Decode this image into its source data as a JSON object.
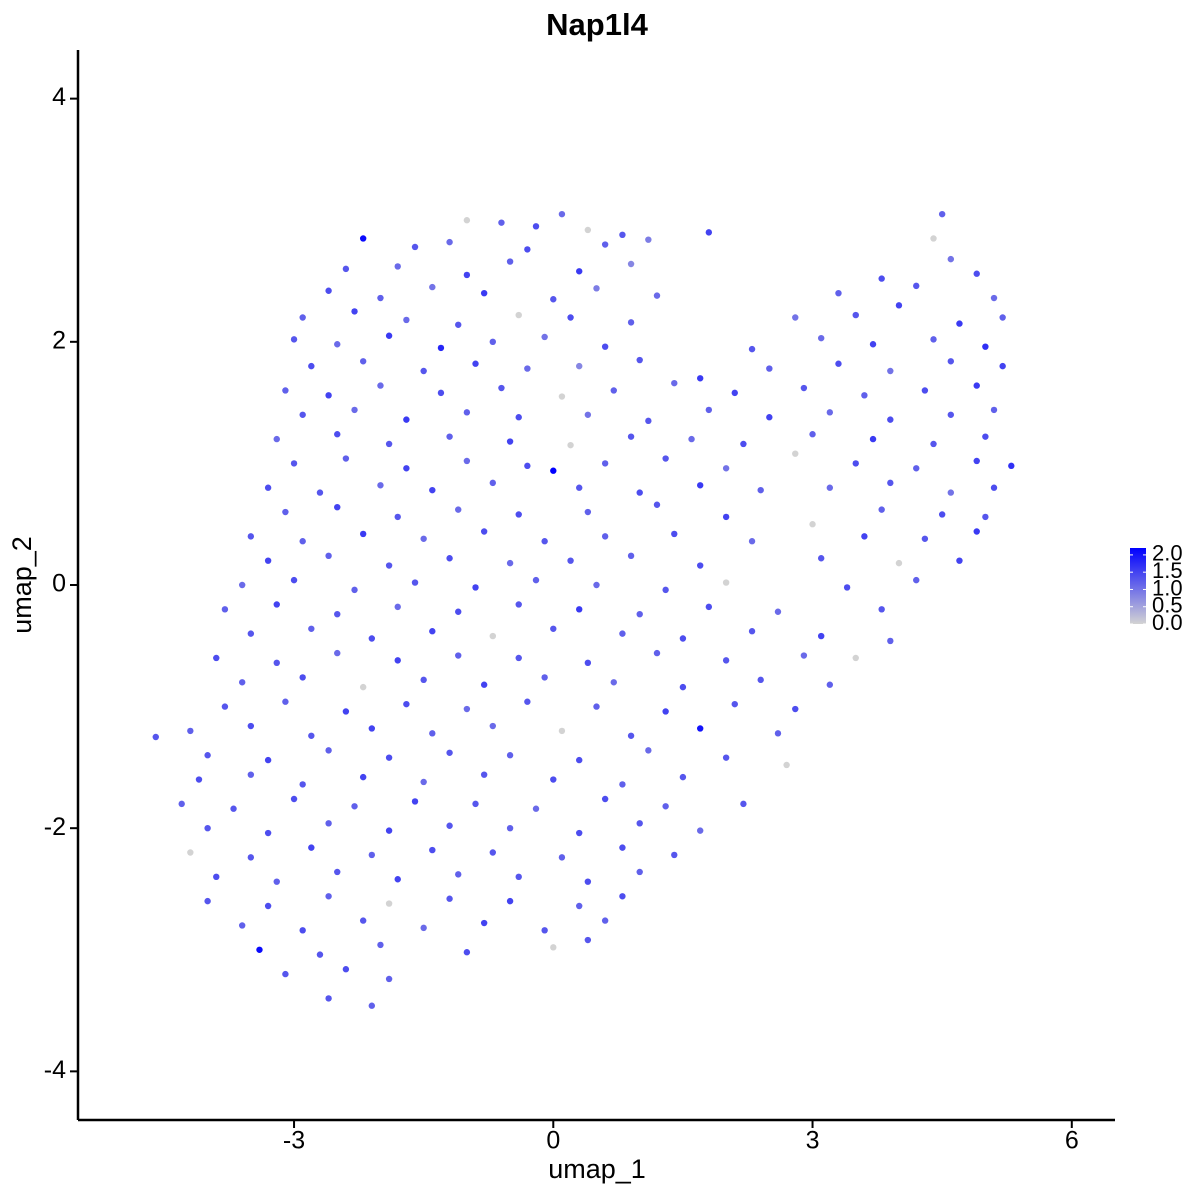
{
  "chart_data": {
    "type": "scatter",
    "title": "Nap1l4",
    "x_label": "umap_1",
    "y_label": "umap_2",
    "xlim": [
      -5.5,
      6.5
    ],
    "ylim": [
      -4.4,
      4.4
    ],
    "xticks": [
      -3,
      0,
      3,
      6
    ],
    "yticks": [
      -4,
      -2,
      0,
      2,
      4
    ],
    "low_color": "#d3d3d3",
    "high_color": "#0000ff",
    "colorbar_ticks": [
      {
        "value": 0,
        "label": "0.0"
      },
      {
        "value": 0.5,
        "label": "0.5"
      },
      {
        "value": 1,
        "label": "1.0"
      },
      {
        "value": 1.5,
        "label": "1.5"
      },
      {
        "value": 2,
        "label": "2.0"
      }
    ],
    "x": [
      -1.0,
      -0.6,
      -0.2,
      0.1,
      0.4,
      0.8,
      -2.2,
      -1.6,
      -1.2,
      -0.3,
      0.6,
      1.1,
      1.8,
      4.5,
      4.4,
      -2.4,
      -1.8,
      -1.0,
      -0.5,
      0.3,
      0.9,
      4.6,
      4.9,
      -2.6,
      -2.0,
      -1.4,
      -0.8,
      0.0,
      0.5,
      1.2,
      3.3,
      3.8,
      4.2,
      5.1,
      -2.9,
      -2.3,
      -1.7,
      -1.1,
      -0.4,
      0.2,
      0.9,
      2.8,
      3.5,
      4.0,
      4.7,
      5.2,
      -3.0,
      -2.5,
      -1.9,
      -1.3,
      -0.7,
      -0.1,
      0.6,
      2.3,
      3.1,
      3.7,
      4.4,
      5.0,
      -2.8,
      -2.2,
      -1.5,
      -0.9,
      -0.3,
      0.3,
      1.0,
      1.7,
      2.5,
      3.3,
      3.9,
      4.6,
      5.2,
      -3.1,
      -2.6,
      -2.0,
      -1.3,
      -0.6,
      0.1,
      0.7,
      1.4,
      2.1,
      2.9,
      3.6,
      4.3,
      4.9,
      -2.9,
      -2.3,
      -1.7,
      -1.0,
      -0.4,
      0.4,
      1.1,
      1.8,
      2.5,
      3.2,
      3.9,
      4.6,
      5.1,
      -3.2,
      -2.5,
      -1.9,
      -1.2,
      -0.5,
      0.2,
      0.9,
      1.6,
      2.2,
      3.0,
      3.7,
      4.4,
      5.0,
      -3.0,
      -2.4,
      -1.7,
      -1.0,
      -0.3,
      0.0,
      0.6,
      1.3,
      2.0,
      2.8,
      3.5,
      4.2,
      4.9,
      5.3,
      -3.3,
      -2.7,
      -2.0,
      -1.4,
      -0.7,
      0.3,
      1.0,
      1.7,
      2.4,
      3.2,
      3.9,
      4.6,
      5.1,
      -3.1,
      -2.5,
      -1.8,
      -1.1,
      -0.4,
      0.4,
      1.2,
      2.0,
      3.0,
      3.8,
      4.5,
      5.0,
      -3.5,
      -2.9,
      -2.2,
      -1.5,
      -0.8,
      -0.1,
      0.6,
      1.4,
      2.3,
      3.6,
      4.3,
      4.9,
      -3.3,
      -2.6,
      -1.9,
      -1.2,
      -0.5,
      0.2,
      0.9,
      1.7,
      3.1,
      4.0,
      4.7,
      -3.6,
      -3.0,
      -2.3,
      -1.6,
      -0.9,
      -0.2,
      0.5,
      1.3,
      2.0,
      3.4,
      4.2,
      -3.8,
      -3.2,
      -2.5,
      -1.8,
      -1.1,
      -0.4,
      0.3,
      1.0,
      1.8,
      2.6,
      3.8,
      -3.5,
      -2.8,
      -2.1,
      -1.4,
      -0.7,
      0.0,
      0.8,
      1.5,
      2.3,
      3.1,
      3.9,
      -3.9,
      -3.2,
      -2.5,
      -1.8,
      -1.1,
      -0.4,
      0.4,
      1.2,
      2.0,
      2.9,
      3.5,
      -3.6,
      -2.9,
      -2.2,
      -1.5,
      -0.8,
      -0.1,
      0.7,
      1.5,
      2.4,
      3.2,
      -3.8,
      -3.1,
      -2.4,
      -1.7,
      -1.0,
      -0.3,
      0.5,
      1.3,
      2.1,
      2.8,
      -4.2,
      -3.5,
      -2.8,
      -2.1,
      -1.4,
      -0.7,
      0.1,
      0.9,
      1.7,
      2.6,
      -4.6,
      -4.0,
      -3.3,
      -2.6,
      -1.9,
      -1.2,
      -0.5,
      0.3,
      1.1,
      2.0,
      2.7,
      -4.1,
      -3.5,
      -2.9,
      -2.2,
      -1.5,
      -0.8,
      0.0,
      0.8,
      1.5,
      -4.3,
      -3.7,
      -3.0,
      -2.3,
      -1.6,
      -0.9,
      -0.2,
      0.6,
      1.3,
      2.2,
      -4.0,
      -3.3,
      -2.6,
      -1.9,
      -1.2,
      -0.5,
      0.3,
      1.0,
      1.7,
      -4.2,
      -3.5,
      -2.8,
      -2.1,
      -1.4,
      -0.7,
      0.1,
      0.8,
      1.4,
      -3.9,
      -3.2,
      -2.5,
      -1.8,
      -1.1,
      -0.4,
      0.4,
      1.0,
      -4.0,
      -3.3,
      -2.6,
      -1.9,
      -1.2,
      -0.5,
      0.3,
      0.8,
      -3.6,
      -2.9,
      -2.2,
      -1.5,
      -0.8,
      -0.1,
      0.6,
      -3.4,
      -2.7,
      -2.0,
      -1.0,
      0.0,
      0.4,
      -3.1,
      -2.4,
      -1.9,
      -2.6,
      -2.1
    ],
    "y": [
      3.0,
      2.98,
      2.95,
      3.05,
      2.92,
      2.88,
      2.85,
      2.78,
      2.82,
      2.76,
      2.8,
      2.84,
      2.9,
      3.05,
      2.85,
      2.6,
      2.62,
      2.55,
      2.66,
      2.58,
      2.64,
      2.68,
      2.56,
      2.42,
      2.36,
      2.45,
      2.4,
      2.35,
      2.44,
      2.38,
      2.4,
      2.52,
      2.46,
      2.36,
      2.2,
      2.25,
      2.18,
      2.14,
      2.22,
      2.2,
      2.16,
      2.2,
      2.22,
      2.3,
      2.15,
      2.2,
      2.02,
      1.98,
      2.05,
      1.95,
      2.0,
      2.04,
      1.96,
      1.94,
      2.03,
      1.98,
      2.02,
      1.96,
      1.8,
      1.84,
      1.76,
      1.82,
      1.78,
      1.8,
      1.85,
      1.7,
      1.78,
      1.82,
      1.76,
      1.84,
      1.8,
      1.6,
      1.56,
      1.64,
      1.58,
      1.62,
      1.55,
      1.6,
      1.66,
      1.58,
      1.62,
      1.56,
      1.6,
      1.64,
      1.4,
      1.44,
      1.36,
      1.42,
      1.38,
      1.4,
      1.35,
      1.44,
      1.38,
      1.42,
      1.36,
      1.4,
      1.44,
      1.2,
      1.24,
      1.16,
      1.22,
      1.18,
      1.15,
      1.22,
      1.2,
      1.16,
      1.24,
      1.2,
      1.16,
      1.22,
      1.0,
      1.04,
      0.96,
      1.02,
      0.98,
      0.94,
      1.0,
      1.04,
      0.96,
      1.08,
      1.0,
      0.96,
      1.02,
      0.98,
      0.8,
      0.76,
      0.82,
      0.78,
      0.84,
      0.8,
      0.76,
      0.82,
      0.78,
      0.8,
      0.84,
      0.76,
      0.8,
      0.6,
      0.64,
      0.56,
      0.62,
      0.58,
      0.6,
      0.66,
      0.56,
      0.5,
      0.62,
      0.58,
      0.56,
      0.4,
      0.36,
      0.42,
      0.38,
      0.44,
      0.36,
      0.4,
      0.42,
      0.36,
      0.4,
      0.38,
      0.44,
      0.2,
      0.24,
      0.16,
      0.22,
      0.18,
      0.2,
      0.24,
      0.16,
      0.22,
      0.18,
      0.2,
      0.0,
      0.04,
      -0.04,
      0.02,
      -0.02,
      0.04,
      0.0,
      -0.04,
      0.02,
      -0.02,
      0.04,
      -0.2,
      -0.16,
      -0.24,
      -0.18,
      -0.22,
      -0.16,
      -0.2,
      -0.24,
      -0.18,
      -0.22,
      -0.2,
      -0.4,
      -0.36,
      -0.44,
      -0.38,
      -0.42,
      -0.36,
      -0.4,
      -0.44,
      -0.38,
      -0.42,
      -0.46,
      -0.6,
      -0.64,
      -0.56,
      -0.62,
      -0.58,
      -0.6,
      -0.64,
      -0.56,
      -0.62,
      -0.58,
      -0.6,
      -0.8,
      -0.76,
      -0.84,
      -0.78,
      -0.82,
      -0.76,
      -0.8,
      -0.84,
      -0.78,
      -0.82,
      -1.0,
      -0.96,
      -1.04,
      -0.98,
      -1.02,
      -0.96,
      -1.0,
      -1.04,
      -0.98,
      -1.02,
      -1.2,
      -1.16,
      -1.24,
      -1.18,
      -1.22,
      -1.16,
      -1.2,
      -1.24,
      -1.18,
      -1.22,
      -1.25,
      -1.4,
      -1.44,
      -1.36,
      -1.42,
      -1.38,
      -1.4,
      -1.44,
      -1.36,
      -1.42,
      -1.48,
      -1.6,
      -1.56,
      -1.64,
      -1.58,
      -1.62,
      -1.56,
      -1.6,
      -1.64,
      -1.58,
      -1.8,
      -1.84,
      -1.76,
      -1.82,
      -1.78,
      -1.8,
      -1.84,
      -1.76,
      -1.82,
      -1.8,
      -2.0,
      -2.04,
      -1.96,
      -2.02,
      -1.98,
      -2.0,
      -2.04,
      -1.96,
      -2.02,
      -2.2,
      -2.24,
      -2.16,
      -2.22,
      -2.18,
      -2.2,
      -2.24,
      -2.16,
      -2.22,
      -2.4,
      -2.44,
      -2.36,
      -2.42,
      -2.38,
      -2.4,
      -2.44,
      -2.36,
      -2.6,
      -2.64,
      -2.56,
      -2.62,
      -2.58,
      -2.6,
      -2.64,
      -2.56,
      -2.8,
      -2.84,
      -2.76,
      -2.82,
      -2.78,
      -2.84,
      -2.76,
      -3.0,
      -3.04,
      -2.96,
      -3.02,
      -2.98,
      -2.92,
      -3.2,
      -3.16,
      -3.24,
      -3.4,
      -3.46
    ],
    "values": [
      0,
      1.2,
      1.4,
      1.1,
      0,
      1.3,
      2.1,
      1.3,
      1.1,
      1.4,
      1.2,
      0.9,
      1.5,
      1.2,
      0,
      1.3,
      1.1,
      1.5,
      1.2,
      1.6,
      0.8,
      1.0,
      1.4,
      1.4,
      1.2,
      1.0,
      1.6,
      1.3,
      0.9,
      1.1,
      1.2,
      1.4,
      1.3,
      1.1,
      1.2,
      1.5,
      1.1,
      1.3,
      0,
      1.4,
      1.2,
      1.0,
      1.3,
      1.5,
      1.6,
      1.2,
      1.3,
      1.1,
      1.6,
      1.8,
      1.2,
      1.0,
      1.4,
      1.3,
      1.1,
      1.5,
      1.2,
      1.7,
      1.4,
      1.2,
      1.3,
      1.5,
      1.1,
      0.8,
      1.3,
      1.6,
      1.2,
      1.4,
      1.0,
      1.3,
      1.5,
      1.2,
      1.5,
      1.1,
      1.4,
      1.3,
      0,
      1.2,
      1.1,
      1.5,
      1.3,
      1.2,
      1.4,
      1.6,
      1.3,
      1.1,
      1.6,
      1.2,
      1.4,
      1.0,
      1.3,
      1.2,
      1.5,
      1.1,
      1.4,
      1.3,
      1.2,
      1.1,
      1.4,
      1.3,
      1.2,
      1.5,
      0,
      1.3,
      1.1,
      1.4,
      1.2,
      1.6,
      1.3,
      1.4,
      1.3,
      1.2,
      1.5,
      1.1,
      1.4,
      2.2,
      1.2,
      1.3,
      1.0,
      0,
      1.4,
      1.2,
      1.5,
      1.7,
      1.4,
      1.3,
      1.1,
      1.5,
      1.2,
      1.3,
      1.4,
      1.6,
      1.2,
      1.1,
      1.3,
      1.0,
      1.4,
      1.2,
      1.5,
      1.3,
      1.1,
      1.4,
      1.2,
      1.3,
      1.5,
      0,
      1.2,
      1.4,
      1.3,
      1.3,
      1.2,
      1.6,
      1.1,
      1.4,
      1.3,
      1.2,
      1.4,
      1.1,
      1.5,
      1.3,
      1.6,
      1.5,
      1.2,
      1.3,
      1.4,
      1.1,
      1.3,
      1.2,
      1.4,
      1.3,
      0,
      1.5,
      1.1,
      1.4,
      1.2,
      1.3,
      1.5,
      1.2,
      1.1,
      1.3,
      0,
      1.4,
      1.2,
      1.2,
      1.5,
      1.3,
      1.1,
      1.4,
      1.3,
      1.6,
      1.2,
      1.4,
      1.1,
      1.3,
      1.3,
      1.2,
      1.4,
      1.5,
      0,
      1.3,
      1.2,
      1.4,
      1.3,
      1.5,
      1.2,
      1.4,
      1.3,
      1.1,
      1.5,
      1.2,
      1.3,
      1.4,
      1.2,
      1.3,
      1.1,
      0,
      1.2,
      1.4,
      0,
      1.3,
      1.5,
      1.2,
      1.1,
      1.4,
      1.3,
      1.2,
      1.3,
      1.2,
      1.5,
      1.4,
      1.1,
      1.3,
      1.2,
      1.5,
      1.3,
      1.4,
      1.2,
      1.4,
      1.3,
      1.5,
      1.2,
      1.1,
      0,
      1.3,
      2.0,
      1.2,
      1.3,
      1.3,
      1.5,
      1.2,
      1.4,
      1.3,
      1.2,
      1.4,
      1.1,
      1.3,
      0,
      1.4,
      1.2,
      1.3,
      1.5,
      1.1,
      1.3,
      1.4,
      1.2,
      1.3,
      1.2,
      1.3,
      1.4,
      1.2,
      1.5,
      1.3,
      1.1,
      1.4,
      1.2,
      1.3,
      1.3,
      1.4,
      1.2,
      1.5,
      1.3,
      1.2,
      1.4,
      1.3,
      1.1,
      0,
      1.3,
      1.5,
      1.2,
      1.4,
      1.3,
      1.2,
      1.4,
      1.3,
      1.4,
      1.2,
      1.3,
      1.5,
      1.2,
      1.3,
      1.4,
      1.2,
      1.3,
      1.4,
      1.2,
      0,
      1.3,
      1.5,
      1.2,
      1.4,
      1.2,
      1.4,
      1.3,
      1.1,
      1.5,
      1.3,
      1.2,
      2.1,
      1.3,
      1.2,
      1.4,
      0,
      1.3,
      1.3,
      1.4,
      1.2,
      1.3,
      1.2
    ]
  }
}
